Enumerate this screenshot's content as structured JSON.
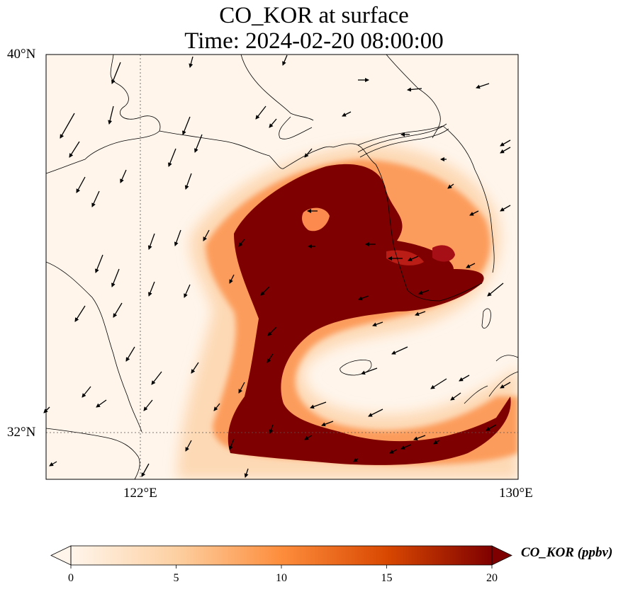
{
  "title": {
    "line1": "CO_KOR at surface",
    "line2": "Time: 2024-02-20 08:00:00"
  },
  "map": {
    "variable": "CO_KOR",
    "level": "surface",
    "lat_range": [
      30.8,
      40
    ],
    "lon_range": [
      120,
      130
    ],
    "lat_ticks": [
      {
        "value": 40,
        "label": "40°N"
      },
      {
        "value": 32,
        "label": "32°N"
      }
    ],
    "lon_ticks": [
      {
        "value": 122,
        "label": "122°E"
      },
      {
        "value": 130,
        "label": "130°E"
      }
    ],
    "gridlines": "dotted at 122°E and 32°N",
    "wind_direction": "northerly to northeasterly",
    "colormap": [
      "#fff5eb",
      "#fdd0a2",
      "#fd8d3c",
      "#d94801",
      "#7f0000"
    ]
  },
  "colorbar": {
    "label": "CO_KOR (ppbv)",
    "min": 0,
    "max": 20,
    "ticks": [
      "0",
      "5",
      "10",
      "15",
      "20"
    ],
    "extend": "both"
  }
}
